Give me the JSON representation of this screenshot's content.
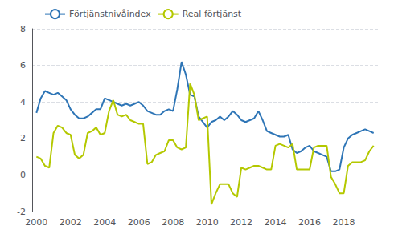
{
  "chart_data": {
    "type": "line",
    "x": [
      2000.0,
      2000.25,
      2000.5,
      2000.75,
      2001.0,
      2001.25,
      2001.5,
      2001.75,
      2002.0,
      2002.25,
      2002.5,
      2002.75,
      2003.0,
      2003.25,
      2003.5,
      2003.75,
      2004.0,
      2004.25,
      2004.5,
      2004.75,
      2005.0,
      2005.25,
      2005.5,
      2005.75,
      2006.0,
      2006.25,
      2006.5,
      2006.75,
      2007.0,
      2007.25,
      2007.5,
      2007.75,
      2008.0,
      2008.25,
      2008.5,
      2008.75,
      2009.0,
      2009.25,
      2009.5,
      2009.75,
      2010.0,
      2010.25,
      2010.5,
      2010.75,
      2011.0,
      2011.25,
      2011.5,
      2011.75,
      2012.0,
      2012.25,
      2012.5,
      2012.75,
      2013.0,
      2013.25,
      2013.5,
      2013.75,
      2014.0,
      2014.25,
      2014.5,
      2014.75,
      2015.0,
      2015.25,
      2015.5,
      2015.75,
      2016.0,
      2016.25,
      2016.5,
      2016.75,
      2017.0,
      2017.25,
      2017.5,
      2017.75,
      2018.0,
      2018.25,
      2018.5,
      2018.75,
      2019.0,
      2019.25,
      2019.5,
      2019.75
    ],
    "series": [
      {
        "name": "Förtjänstnivåindex",
        "color": "#2E75B6",
        "values": [
          3.4,
          4.2,
          4.6,
          4.5,
          4.4,
          4.5,
          4.3,
          4.1,
          3.6,
          3.3,
          3.1,
          3.1,
          3.2,
          3.4,
          3.6,
          3.6,
          4.2,
          4.1,
          4.0,
          3.9,
          3.8,
          3.9,
          3.8,
          3.9,
          4.0,
          3.8,
          3.5,
          3.4,
          3.3,
          3.3,
          3.5,
          3.6,
          3.5,
          4.7,
          6.2,
          5.5,
          4.4,
          4.3,
          3.2,
          2.9,
          2.6,
          2.9,
          3.0,
          3.2,
          3.0,
          3.2,
          3.5,
          3.3,
          3.0,
          2.9,
          3.0,
          3.1,
          3.5,
          3.0,
          2.4,
          2.3,
          2.2,
          2.1,
          2.1,
          2.2,
          1.4,
          1.2,
          1.3,
          1.5,
          1.6,
          1.3,
          1.2,
          1.1,
          1.0,
          0.2,
          0.2,
          0.3,
          1.5,
          2.0,
          2.2,
          2.3,
          2.4,
          2.5,
          2.4,
          2.3
        ]
      },
      {
        "name": "Real förtjänst",
        "color": "#B4C800",
        "values": [
          1.0,
          0.9,
          0.5,
          0.4,
          2.3,
          2.7,
          2.6,
          2.3,
          2.2,
          1.1,
          0.9,
          1.1,
          2.3,
          2.4,
          2.6,
          2.2,
          2.3,
          3.5,
          4.1,
          3.3,
          3.2,
          3.3,
          3.0,
          2.9,
          2.8,
          2.8,
          0.6,
          0.7,
          1.1,
          1.2,
          1.3,
          1.9,
          1.9,
          1.5,
          1.4,
          1.5,
          5.0,
          4.4,
          3.0,
          3.1,
          3.2,
          -1.6,
          -1.0,
          -0.5,
          -0.5,
          -0.5,
          -1.0,
          -1.2,
          0.4,
          0.3,
          0.4,
          0.5,
          0.5,
          0.4,
          0.3,
          0.3,
          1.6,
          1.7,
          1.6,
          1.5,
          1.7,
          0.3,
          0.3,
          0.3,
          0.3,
          1.5,
          1.6,
          1.6,
          1.6,
          -0.1,
          -0.5,
          -1.0,
          -1.0,
          0.5,
          0.7,
          0.7,
          0.7,
          0.8,
          1.3,
          1.6
        ]
      }
    ],
    "xlim": [
      1999.75,
      2020.0
    ],
    "xticks": [
      2000,
      2002,
      2004,
      2006,
      2008,
      2010,
      2012,
      2014,
      2016,
      2018
    ],
    "ylim": [
      -2,
      8
    ],
    "yticks": [
      -2,
      0,
      2,
      4,
      6,
      8
    ],
    "grid": true,
    "legend": "upper left"
  }
}
